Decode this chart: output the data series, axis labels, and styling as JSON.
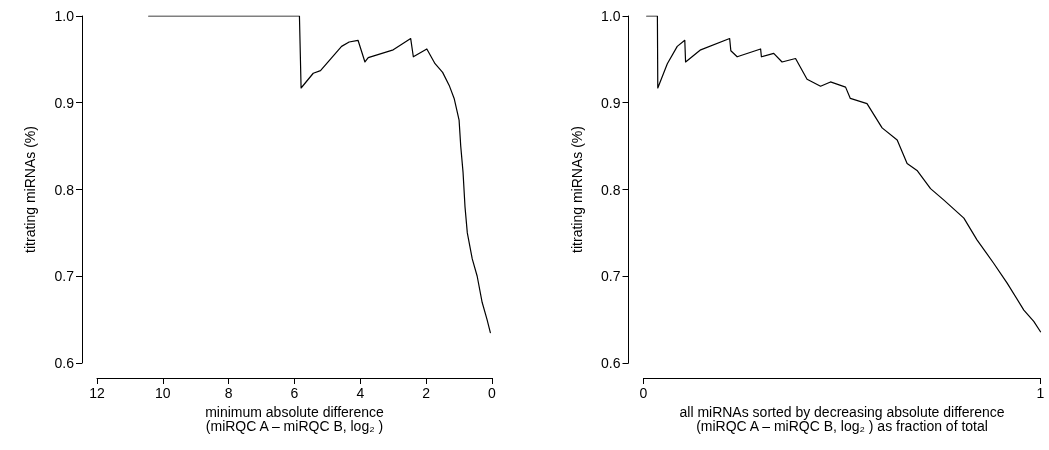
{
  "chart_data": [
    {
      "type": "line",
      "xlabel": "minimum absolute difference\n(miRQC A – miRQC B, log₂ )",
      "ylabel": "titrating miRNAs (%)",
      "xlim": [
        12,
        0
      ],
      "xticks": [
        12,
        10,
        8,
        6,
        4,
        2,
        0
      ],
      "ylim": [
        0.6,
        1.0
      ],
      "yticks": [
        0.6,
        0.7,
        0.8,
        0.9,
        {
          "value": 1.0,
          "label": "1.0"
        }
      ],
      "grid": false,
      "marker": "none",
      "line_style": "solid",
      "series": [
        {
          "color": "#000000",
          "x": [
            10.43,
            5.85,
            5.8,
            5.43,
            5.21,
            4.57,
            4.34,
            4.07,
            3.86,
            3.76,
            3.0,
            2.47,
            2.39,
            1.98,
            1.73,
            1.5,
            1.3,
            1.15,
            1.0,
            0.95,
            0.88,
            0.82,
            0.75,
            0.6,
            0.45,
            0.3,
            0.15,
            0.05
          ],
          "values": [
            1.0,
            1.0,
            0.917,
            0.934,
            0.937,
            0.965,
            0.97,
            0.972,
            0.947,
            0.952,
            0.961,
            0.974,
            0.953,
            0.962,
            0.945,
            0.935,
            0.92,
            0.905,
            0.88,
            0.85,
            0.82,
            0.78,
            0.75,
            0.72,
            0.7,
            0.67,
            0.65,
            0.635
          ]
        }
      ]
    },
    {
      "type": "line",
      "xlabel": "all miRNAs sorted by decreasing absolute difference\n(miRQC A – miRQC B, log₂ ) as fraction of total",
      "ylabel": "titrating miRNAs (%)",
      "xlim": [
        0,
        1
      ],
      "xticks": [
        0,
        1
      ],
      "ylim": [
        0.6,
        1.0
      ],
      "yticks": [
        0.6,
        0.7,
        0.8,
        0.9,
        {
          "value": 1.0,
          "label": "1.0"
        }
      ],
      "grid": false,
      "marker": "none",
      "line_style": "solid",
      "series": [
        {
          "color": "#000000",
          "x": [
            0.008,
            0.035,
            0.036,
            0.06,
            0.085,
            0.104,
            0.106,
            0.144,
            0.217,
            0.22,
            0.236,
            0.295,
            0.297,
            0.328,
            0.349,
            0.383,
            0.412,
            0.446,
            0.471,
            0.509,
            0.521,
            0.563,
            0.601,
            0.639,
            0.664,
            0.689,
            0.723,
            0.756,
            0.807,
            0.84,
            0.882,
            0.916,
            0.958,
            0.983,
            1.0
          ],
          "values": [
            1.0,
            1.0,
            0.917,
            0.945,
            0.965,
            0.972,
            0.947,
            0.961,
            0.974,
            0.96,
            0.953,
            0.962,
            0.953,
            0.957,
            0.947,
            0.951,
            0.927,
            0.919,
            0.924,
            0.918,
            0.905,
            0.899,
            0.871,
            0.857,
            0.83,
            0.822,
            0.801,
            0.788,
            0.767,
            0.742,
            0.715,
            0.692,
            0.661,
            0.648,
            0.636
          ]
        }
      ]
    }
  ]
}
